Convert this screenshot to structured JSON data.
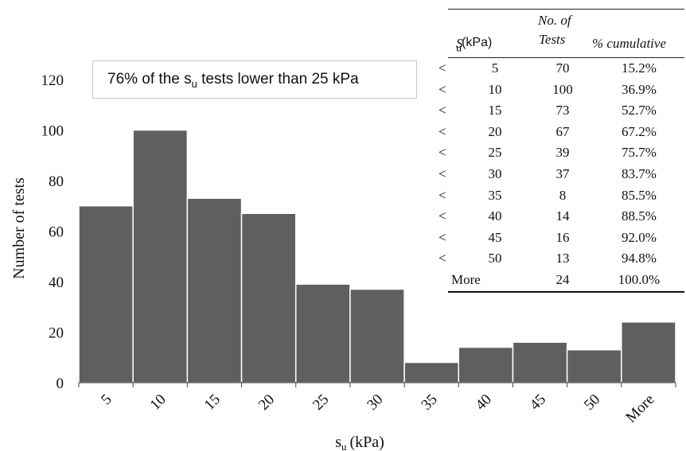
{
  "chart_data": {
    "type": "bar",
    "categories": [
      "5",
      "10",
      "15",
      "20",
      "25",
      "30",
      "35",
      "40",
      "45",
      "50",
      "More"
    ],
    "values": [
      70,
      100,
      73,
      67,
      39,
      37,
      8,
      14,
      16,
      13,
      24
    ],
    "ylim": [
      0,
      120
    ],
    "yticks": [
      "0",
      "20",
      "40",
      "60",
      "80",
      "100",
      "120"
    ],
    "ylabel": "Number of tests",
    "xlabel_main": "s",
    "xlabel_sub": "u",
    "xlabel_unit": "(kPa)",
    "bar_color": "#5f5f5f",
    "grid": false
  },
  "annotation": {
    "prefix": "76% of the s",
    "sub": "u",
    "suffix": " tests lower than 25 kPa"
  },
  "table": {
    "header": {
      "su_symbol": "S",
      "su_sub": "u",
      "su_unit": " (kPa)",
      "tests_line1": "No. of",
      "tests_line2": "Tests",
      "cumulative": "% cumulative"
    },
    "rows": [
      {
        "op": "<",
        "bin": "5",
        "count": "70",
        "pct": "15.2%"
      },
      {
        "op": "<",
        "bin": "10",
        "count": "100",
        "pct": "36.9%"
      },
      {
        "op": "<",
        "bin": "15",
        "count": "73",
        "pct": "52.7%"
      },
      {
        "op": "<",
        "bin": "20",
        "count": "67",
        "pct": "67.2%"
      },
      {
        "op": "<",
        "bin": "25",
        "count": "39",
        "pct": "75.7%"
      },
      {
        "op": "<",
        "bin": "30",
        "count": "37",
        "pct": "83.7%"
      },
      {
        "op": "<",
        "bin": "35",
        "count": "8",
        "pct": "85.5%"
      },
      {
        "op": "<",
        "bin": "40",
        "count": "14",
        "pct": "88.5%"
      },
      {
        "op": "<",
        "bin": "45",
        "count": "16",
        "pct": "92.0%"
      },
      {
        "op": "<",
        "bin": "50",
        "count": "13",
        "pct": "94.8%"
      }
    ],
    "more_row": {
      "label": "More",
      "count": "24",
      "pct": "100.0%"
    }
  }
}
